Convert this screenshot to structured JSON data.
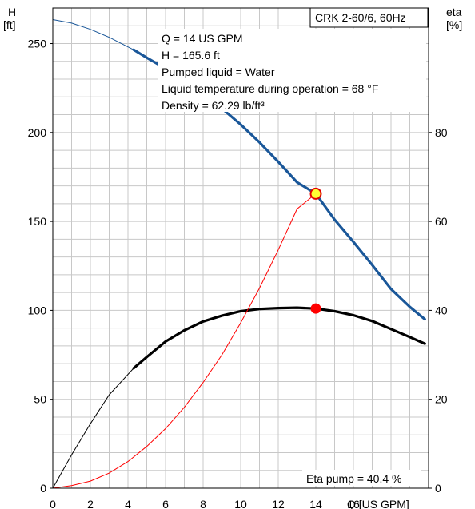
{
  "chart_data": {
    "type": "line",
    "title_box": "CRK 2-60/6, 60Hz",
    "xlabel": "Q [US GPM]",
    "ylabel_left": [
      "H",
      "[ft]"
    ],
    "ylabel_right": [
      "eta",
      "[%]"
    ],
    "xlim": [
      0,
      20
    ],
    "ylim_left": [
      0,
      270
    ],
    "ylim_right": [
      0,
      108
    ],
    "x_ticks": [
      0,
      2,
      4,
      6,
      8,
      10,
      12,
      14,
      16
    ],
    "y_ticks_left": [
      0,
      50,
      100,
      150,
      200,
      250
    ],
    "y_ticks_right": [
      0,
      20,
      40,
      60,
      80
    ],
    "grid": true,
    "info_lines": [
      "Q = 14 US GPM",
      "H = 165.6 ft",
      "Pumped liquid = Water",
      "Liquid temperature during operation = 68 °F",
      "Density = 62.29 lb/ft³"
    ],
    "eta_label": "Eta pump = 40.4 %",
    "series": [
      {
        "role": "head",
        "axis": "left",
        "color": "#1a5799",
        "x": [
          0,
          1,
          2,
          3,
          4.3,
          5,
          6,
          7,
          8,
          9,
          10,
          11,
          12,
          13,
          14,
          15,
          16,
          17,
          18,
          19,
          19.8
        ],
        "values": [
          263.5,
          261.5,
          258,
          253.5,
          246.5,
          242,
          236,
          229.5,
          222,
          213.5,
          204.5,
          194.5,
          183.5,
          172,
          165.6,
          151,
          138.5,
          125.5,
          112,
          102,
          95
        ],
        "bold_from_x": 4.3
      },
      {
        "role": "efficiency",
        "axis": "right",
        "color": "#000000",
        "x": [
          0,
          1,
          2,
          3,
          4.3,
          5,
          6,
          7,
          8,
          9,
          10,
          11,
          12,
          13,
          14,
          15,
          16,
          17,
          18,
          19,
          19.8
        ],
        "values": [
          0,
          7.5,
          14.5,
          21,
          27,
          29.5,
          33,
          35.5,
          37.5,
          38.8,
          39.8,
          40.3,
          40.5,
          40.6,
          40.4,
          39.8,
          38.9,
          37.6,
          35.8,
          34,
          32.5
        ],
        "bold_from_x": 4.3
      },
      {
        "role": "system",
        "axis": "left",
        "color": "#ff0000",
        "x": [
          0,
          1,
          2,
          3,
          4,
          5,
          6,
          7,
          8,
          9,
          10,
          11,
          12,
          13,
          14
        ],
        "values": [
          0,
          1.5,
          4,
          8.5,
          15,
          23.5,
          33.5,
          45.5,
          59.5,
          75,
          93,
          112.5,
          134,
          157,
          165.6
        ]
      }
    ],
    "duty_point": {
      "x": 14,
      "head": 165.6,
      "eta": 40.4
    }
  }
}
